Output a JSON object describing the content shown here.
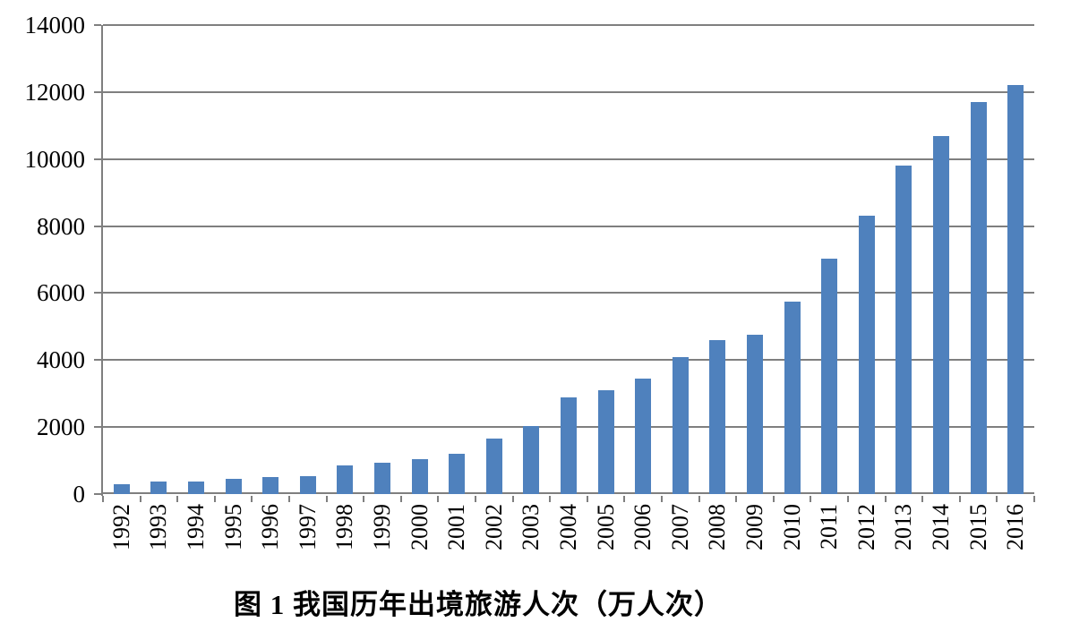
{
  "chart_data": {
    "type": "bar",
    "title": "图 1 我国历年出境旅游人次（万人次）",
    "unit": "万人次",
    "categories": [
      "1992",
      "1993",
      "1994",
      "1995",
      "1996",
      "1997",
      "1998",
      "1999",
      "2000",
      "2001",
      "2002",
      "2003",
      "2004",
      "2005",
      "2006",
      "2007",
      "2008",
      "2009",
      "2010",
      "2011",
      "2012",
      "2013",
      "2014",
      "2015",
      "2016"
    ],
    "values": [
      293,
      374,
      373,
      452,
      506,
      532,
      843,
      923,
      1047,
      1213,
      1660,
      2022,
      2885,
      3103,
      3452,
      4095,
      4584,
      4766,
      5739,
      7025,
      8318,
      9819,
      10700,
      11700,
      12200
    ],
    "ylim": [
      0,
      14000
    ],
    "yticks": [
      0,
      2000,
      4000,
      6000,
      8000,
      10000,
      12000,
      14000
    ],
    "xlabel": "",
    "ylabel": "",
    "legend": "none",
    "grid": "horizontal",
    "bar_color": "#4f81bd",
    "gridline_color": "#7f7f7f",
    "axis_color": "#7f7f7f",
    "label_color": "#000000"
  }
}
